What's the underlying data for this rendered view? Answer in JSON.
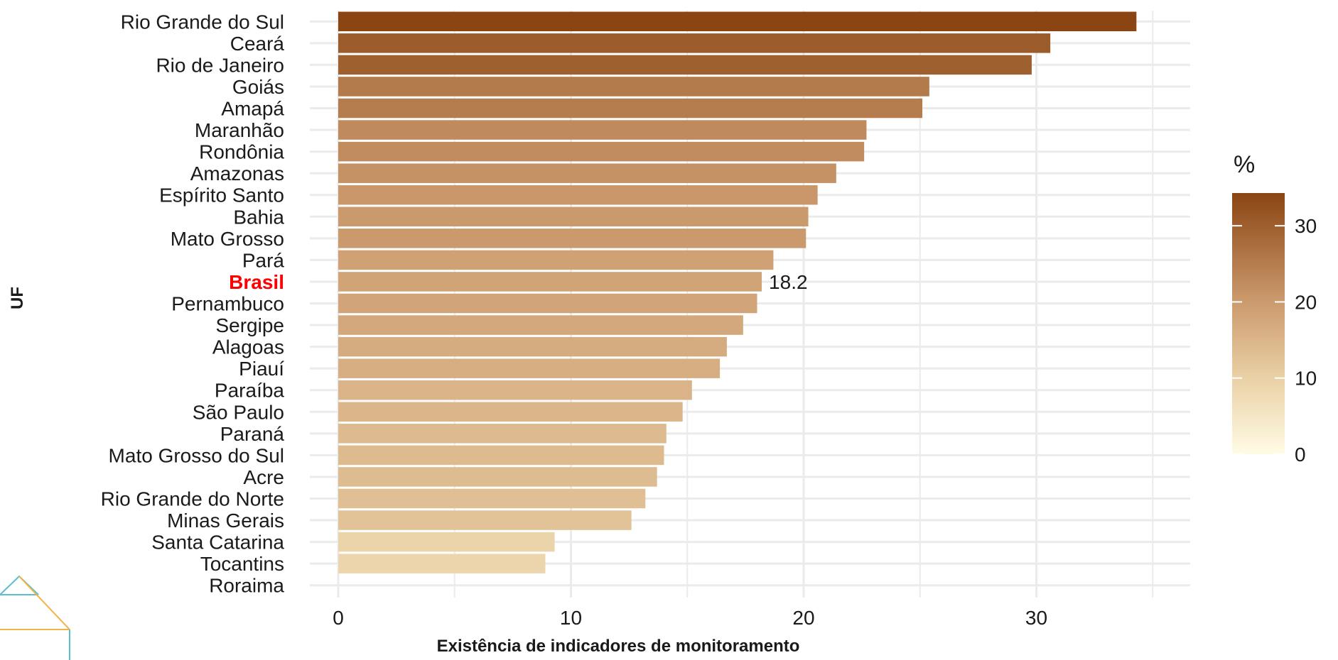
{
  "chart_data": {
    "type": "bar",
    "orientation": "horizontal",
    "xlabel": "Existência de indicadores de monitoramento",
    "ylabel": "UF",
    "xlim": [
      0,
      36
    ],
    "xticks": [
      0,
      10,
      20,
      30
    ],
    "grid": true,
    "highlight_category": "Brasil",
    "highlight_color": "#ff0000",
    "categories": [
      "Rio Grande do Sul",
      "Ceará",
      "Rio de Janeiro",
      "Goiás",
      "Amapá",
      "Maranhão",
      "Rondônia",
      "Amazonas",
      "Espírito Santo",
      "Bahia",
      "Mato Grosso",
      "Pará",
      "Brasil",
      "Pernambuco",
      "Sergipe",
      "Alagoas",
      "Piauí",
      "Paraíba",
      "São Paulo",
      "Paraná",
      "Mato Grosso do Sul",
      "Acre",
      "Rio Grande do Norte",
      "Minas Gerais",
      "Santa Catarina",
      "Tocantins",
      "Roraima"
    ],
    "values": [
      34.3,
      30.6,
      29.8,
      25.4,
      25.1,
      22.7,
      22.6,
      21.4,
      20.6,
      20.2,
      20.1,
      18.7,
      18.2,
      18.0,
      17.4,
      16.7,
      16.4,
      15.2,
      14.8,
      14.1,
      14.0,
      13.7,
      13.2,
      12.6,
      9.3,
      8.9,
      0
    ],
    "data_labels": [
      {
        "category": "Brasil",
        "text": "18.2"
      }
    ],
    "legend": {
      "title": "%",
      "placement": "right",
      "type": "colorbar",
      "range": [
        0,
        34.3
      ],
      "ticks": [
        0,
        10,
        20,
        30
      ],
      "color_low": "#fffce5",
      "color_high": "#8b4513"
    }
  },
  "colors": {
    "grid": "#ebebeb",
    "text": "#1a1a1a",
    "logo_teal": "#5bbfcf",
    "logo_orange": "#f2b347"
  }
}
